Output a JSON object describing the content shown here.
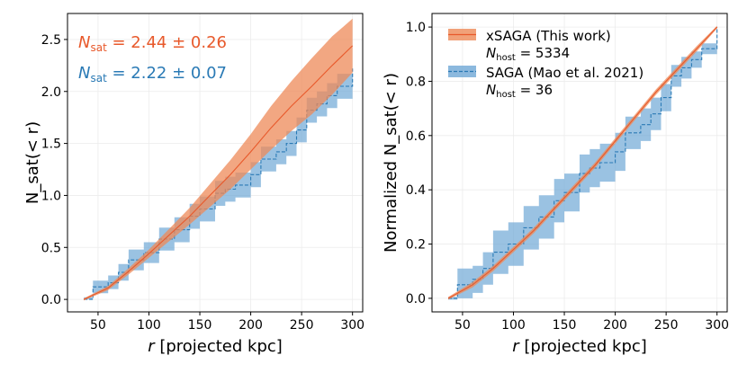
{
  "colors": {
    "xsaga": "#e8592b",
    "saga": "#2a7ab5",
    "xsaga_band": "#ee8a58",
    "saga_band": "#6fa8d6"
  },
  "chart_data": [
    {
      "type": "line",
      "panel": "left",
      "title": "",
      "xlabel_italic": "r",
      "xlabel_rest": " [projected kpc]",
      "ylabel": "N_sat(< r)",
      "xlim": [
        20,
        310
      ],
      "ylim": [
        -0.12,
        2.75
      ],
      "xticks": [
        "50",
        "100",
        "150",
        "200",
        "250",
        "300"
      ],
      "yticks": [
        "0.0",
        "0.5",
        "1.0",
        "1.5",
        "2.0",
        "2.5"
      ],
      "xtick_values": [
        50,
        100,
        150,
        200,
        250,
        300
      ],
      "ytick_values": [
        0,
        0.5,
        1.0,
        1.5,
        2.0,
        2.5
      ],
      "annotations": [
        {
          "label": "N_sat = 2.44 ± 0.26",
          "sym": "N",
          "sub": "sat",
          "rest": " = 2.44 ± 0.26",
          "series": "xsaga"
        },
        {
          "label": "N_sat = 2.22 ± 0.07",
          "sym": "N",
          "sub": "sat",
          "rest": " = 2.22 ± 0.07",
          "series": "saga"
        }
      ],
      "series": [
        {
          "name": "xSAGA",
          "key": "xsaga",
          "style": "solid",
          "x": [
            36,
            60,
            80,
            100,
            120,
            140,
            160,
            180,
            200,
            220,
            240,
            260,
            280,
            300
          ],
          "y": [
            0.0,
            0.11,
            0.27,
            0.44,
            0.62,
            0.8,
            1.0,
            1.2,
            1.42,
            1.65,
            1.86,
            2.05,
            2.25,
            2.44
          ],
          "low": [
            -0.01,
            0.09,
            0.24,
            0.4,
            0.56,
            0.72,
            0.89,
            1.06,
            1.25,
            1.44,
            1.62,
            1.78,
            1.97,
            2.18
          ],
          "high": [
            0.01,
            0.13,
            0.3,
            0.48,
            0.68,
            0.88,
            1.11,
            1.34,
            1.59,
            1.86,
            2.1,
            2.32,
            2.53,
            2.7
          ]
        },
        {
          "name": "SAGA",
          "key": "saga",
          "style": "dashed",
          "x": [
            36,
            45,
            60,
            70,
            80,
            95,
            110,
            125,
            140,
            150,
            165,
            175,
            185,
            200,
            210,
            225,
            235,
            245,
            255,
            265,
            275,
            285,
            300
          ],
          "y": [
            0.0,
            0.12,
            0.16,
            0.26,
            0.38,
            0.45,
            0.58,
            0.67,
            0.8,
            0.87,
            1.02,
            1.06,
            1.1,
            1.2,
            1.35,
            1.42,
            1.5,
            1.63,
            1.82,
            1.88,
            1.96,
            2.05,
            2.22
          ],
          "low": [
            0.0,
            0.06,
            0.1,
            0.18,
            0.28,
            0.35,
            0.47,
            0.55,
            0.68,
            0.75,
            0.9,
            0.94,
            0.98,
            1.08,
            1.23,
            1.3,
            1.38,
            1.51,
            1.7,
            1.76,
            1.84,
            1.93,
            2.13
          ],
          "high": [
            0.02,
            0.18,
            0.23,
            0.34,
            0.48,
            0.55,
            0.69,
            0.79,
            0.92,
            0.99,
            1.14,
            1.18,
            1.22,
            1.32,
            1.47,
            1.54,
            1.62,
            1.75,
            1.94,
            2.0,
            2.08,
            2.17,
            2.28
          ]
        }
      ]
    },
    {
      "type": "line",
      "panel": "right",
      "title": "",
      "xlabel_italic": "r",
      "xlabel_rest": " [projected kpc]",
      "ylabel": "Normalized N_sat(< r)",
      "xlim": [
        20,
        310
      ],
      "ylim": [
        -0.05,
        1.05
      ],
      "xticks": [
        "50",
        "100",
        "150",
        "200",
        "250",
        "300"
      ],
      "yticks": [
        "0.0",
        "0.2",
        "0.4",
        "0.6",
        "0.8",
        "1.0"
      ],
      "xtick_values": [
        50,
        100,
        150,
        200,
        250,
        300
      ],
      "ytick_values": [
        0,
        0.2,
        0.4,
        0.6,
        0.8,
        1.0
      ],
      "legend": {
        "placement": "top-left",
        "entries": [
          {
            "key": "xsaga",
            "label": "xSAGA (This work)",
            "nhost_sym": "N",
            "nhost_sub": "host",
            "nhost_rest": " = 5334"
          },
          {
            "key": "saga",
            "label": "SAGA (Mao et al. 2021)",
            "nhost_sym": "N",
            "nhost_sub": "host",
            "nhost_rest": " = 36"
          }
        ]
      },
      "series": [
        {
          "name": "xSAGA",
          "key": "xsaga",
          "style": "solid",
          "x": [
            36,
            60,
            80,
            100,
            120,
            140,
            160,
            180,
            200,
            220,
            240,
            260,
            280,
            300
          ],
          "y": [
            0.0,
            0.05,
            0.11,
            0.18,
            0.25,
            0.33,
            0.41,
            0.49,
            0.58,
            0.67,
            0.76,
            0.84,
            0.92,
            1.0
          ],
          "low": [
            -0.005,
            0.04,
            0.1,
            0.17,
            0.24,
            0.32,
            0.4,
            0.48,
            0.57,
            0.66,
            0.75,
            0.83,
            0.91,
            0.995
          ],
          "high": [
            0.005,
            0.06,
            0.12,
            0.19,
            0.26,
            0.34,
            0.42,
            0.5,
            0.59,
            0.68,
            0.77,
            0.85,
            0.93,
            1.005
          ]
        },
        {
          "name": "SAGA",
          "key": "saga",
          "style": "dashed",
          "x": [
            36,
            45,
            60,
            70,
            80,
            95,
            110,
            125,
            140,
            150,
            165,
            175,
            185,
            200,
            210,
            225,
            235,
            245,
            255,
            265,
            275,
            285,
            300
          ],
          "y": [
            0.0,
            0.05,
            0.07,
            0.11,
            0.17,
            0.2,
            0.26,
            0.3,
            0.36,
            0.39,
            0.46,
            0.48,
            0.5,
            0.54,
            0.61,
            0.64,
            0.68,
            0.74,
            0.82,
            0.85,
            0.88,
            0.92,
            1.0
          ],
          "low": [
            -0.005,
            0.0,
            0.02,
            0.05,
            0.09,
            0.12,
            0.18,
            0.22,
            0.28,
            0.32,
            0.39,
            0.41,
            0.43,
            0.47,
            0.55,
            0.58,
            0.62,
            0.69,
            0.78,
            0.81,
            0.85,
            0.9,
            0.99
          ],
          "high": [
            0.005,
            0.11,
            0.12,
            0.17,
            0.25,
            0.28,
            0.34,
            0.38,
            0.44,
            0.46,
            0.53,
            0.55,
            0.57,
            0.61,
            0.67,
            0.7,
            0.74,
            0.79,
            0.86,
            0.89,
            0.91,
            0.94,
            1.005
          ]
        }
      ]
    }
  ]
}
